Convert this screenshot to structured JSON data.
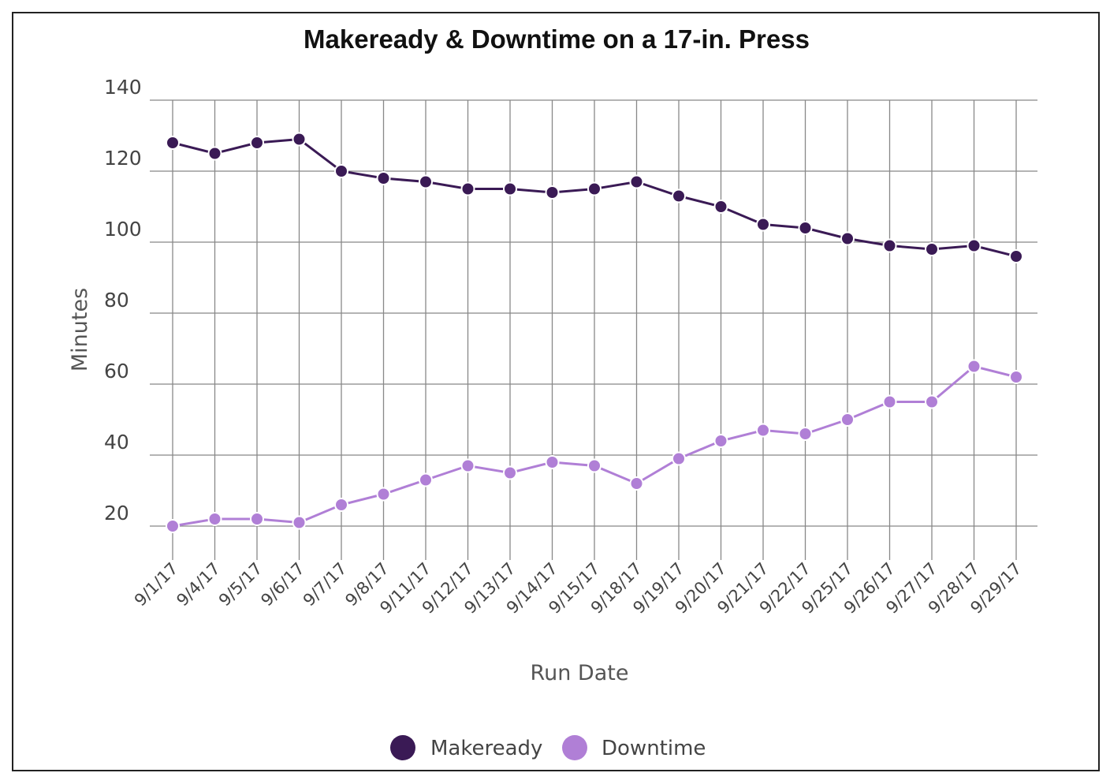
{
  "chart_data": {
    "type": "line",
    "title": "Makeready & Downtime on a 17-in. Press",
    "xlabel": "Run Date",
    "ylabel": "Minutes",
    "ylim": [
      20,
      140
    ],
    "yticks": [
      20,
      40,
      60,
      80,
      100,
      120,
      140
    ],
    "grid": true,
    "legend_position": "bottom",
    "categories": [
      "9/1/17",
      "9/4/17",
      "9/5/17",
      "9/6/17",
      "9/7/17",
      "9/8/17",
      "9/11/17",
      "9/12/17",
      "9/13/17",
      "9/14/17",
      "9/15/17",
      "9/18/17",
      "9/19/17",
      "9/20/17",
      "9/21/17",
      "9/22/17",
      "9/25/17",
      "9/26/17",
      "9/27/17",
      "9/28/17",
      "9/29/17"
    ],
    "series": [
      {
        "name": "Makeready",
        "color": "#3a1a55",
        "values": [
          128,
          125,
          128,
          129,
          120,
          118,
          117,
          115,
          115,
          114,
          115,
          117,
          113,
          110,
          105,
          104,
          101,
          99,
          98,
          99,
          96
        ]
      },
      {
        "name": "Downtime",
        "color": "#b07fd6",
        "values": [
          20,
          22,
          22,
          21,
          26,
          29,
          33,
          37,
          35,
          38,
          37,
          32,
          39,
          44,
          47,
          46,
          50,
          55,
          55,
          65,
          62
        ]
      }
    ]
  }
}
